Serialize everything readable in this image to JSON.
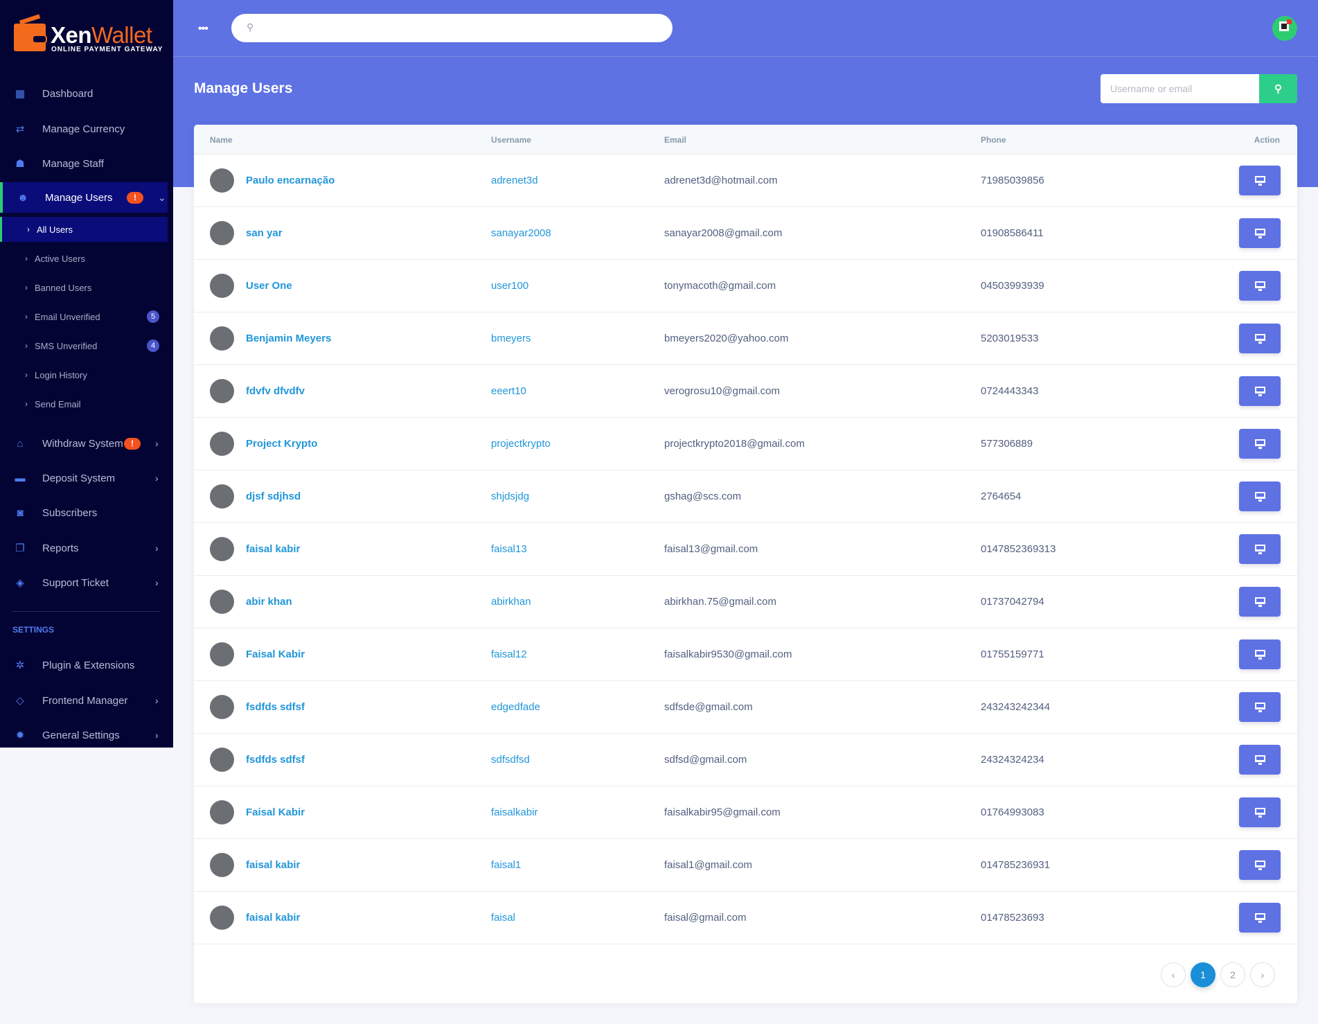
{
  "brand": {
    "name_a": "Xen",
    "name_b": "Wallet",
    "tagline": "ONLINE PAYMENT GATEWAY"
  },
  "colors": {
    "sidebar": "#040434",
    "accent": "#5e72e4",
    "success": "#2dce89",
    "link": "#2196d9",
    "badge": "#f4511e",
    "active_nav": "#0a0c7a"
  },
  "sidebar": {
    "items": [
      {
        "label": "Dashboard",
        "icon": "dashboard-icon"
      },
      {
        "label": "Manage Currency",
        "icon": "exchange-icon"
      },
      {
        "label": "Manage Staff",
        "icon": "staff-icon"
      },
      {
        "label": "Manage Users",
        "icon": "users-icon",
        "badge": "!",
        "chevron": "down",
        "active": true
      },
      {
        "label": "Withdraw System",
        "icon": "bank-icon",
        "badge": "!",
        "chevron": "right"
      },
      {
        "label": "Deposit System",
        "icon": "credit-card-icon",
        "chevron": "right"
      },
      {
        "label": "Subscribers",
        "icon": "rss-icon"
      },
      {
        "label": "Reports",
        "icon": "copy-icon",
        "chevron": "right"
      },
      {
        "label": "Support Ticket",
        "icon": "ticket-icon",
        "chevron": "right"
      }
    ],
    "submenu": [
      {
        "label": "All Users",
        "active": true
      },
      {
        "label": "Active Users"
      },
      {
        "label": "Banned Users"
      },
      {
        "label": "Email Unverified",
        "count": "5"
      },
      {
        "label": "SMS Unverified",
        "count": "4"
      },
      {
        "label": "Login History"
      },
      {
        "label": "Send Email"
      }
    ],
    "settings_heading": "SETTINGS",
    "settings_items": [
      {
        "label": "Plugin & Extensions",
        "icon": "cogs-icon"
      },
      {
        "label": "Frontend Manager",
        "icon": "diamond-icon",
        "chevron": "right"
      },
      {
        "label": "General Settings",
        "icon": "gear-icon",
        "chevron": "right"
      }
    ]
  },
  "topbar": {
    "search_placeholder": "",
    "menu_icon": "ellipsis-icon"
  },
  "page": {
    "title": "Manage Users",
    "search_placeholder": "Username or email"
  },
  "table": {
    "headers": {
      "name": "Name",
      "username": "Username",
      "email": "Email",
      "phone": "Phone",
      "action": "Action"
    },
    "rows": [
      {
        "name": "Paulo encarnação",
        "username": "adrenet3d",
        "email": "adrenet3d@hotmail.com",
        "phone": "71985039856"
      },
      {
        "name": "san yar",
        "username": "sanayar2008",
        "email": "sanayar2008@gmail.com",
        "phone": "01908586411"
      },
      {
        "name": "User One",
        "username": "user100",
        "email": "tonymacoth@gmail.com",
        "phone": "04503993939"
      },
      {
        "name": "Benjamin Meyers",
        "username": "bmeyers",
        "email": "bmeyers2020@yahoo.com",
        "phone": "5203019533"
      },
      {
        "name": "fdvfv dfvdfv",
        "username": "eeert10",
        "email": "verogrosu10@gmail.com",
        "phone": "0724443343"
      },
      {
        "name": "Project Krypto",
        "username": "projectkrypto",
        "email": "projectkrypto2018@gmail.com",
        "phone": "577306889"
      },
      {
        "name": "djsf sdjhsd",
        "username": "shjdsjdg",
        "email": "gshag@scs.com",
        "phone": "2764654"
      },
      {
        "name": "faisal kabir",
        "username": "faisal13",
        "email": "faisal13@gmail.com",
        "phone": "0147852369313"
      },
      {
        "name": "abir khan",
        "username": "abirkhan",
        "email": "abirkhan.75@gmail.com",
        "phone": "01737042794"
      },
      {
        "name": "Faisal Kabir",
        "username": "faisal12",
        "email": "faisalkabir9530@gmail.com",
        "phone": "01755159771"
      },
      {
        "name": "fsdfds sdfsf",
        "username": "edgedfade",
        "email": "sdfsde@gmail.com",
        "phone": "243243242344"
      },
      {
        "name": "fsdfds sdfsf",
        "username": "sdfsdfsd",
        "email": "sdfsd@gmail.com",
        "phone": "24324324234"
      },
      {
        "name": "Faisal Kabir",
        "username": "faisalkabir",
        "email": "faisalkabir95@gmail.com",
        "phone": "01764993083"
      },
      {
        "name": "faisal kabir",
        "username": "faisal1",
        "email": "faisal1@gmail.com",
        "phone": "014785236931"
      },
      {
        "name": "faisal kabir",
        "username": "faisal",
        "email": "faisal@gmail.com",
        "phone": "01478523693"
      }
    ]
  },
  "pagination": {
    "prev": "‹",
    "pages": [
      "1",
      "2"
    ],
    "current": "1",
    "next": "›"
  }
}
